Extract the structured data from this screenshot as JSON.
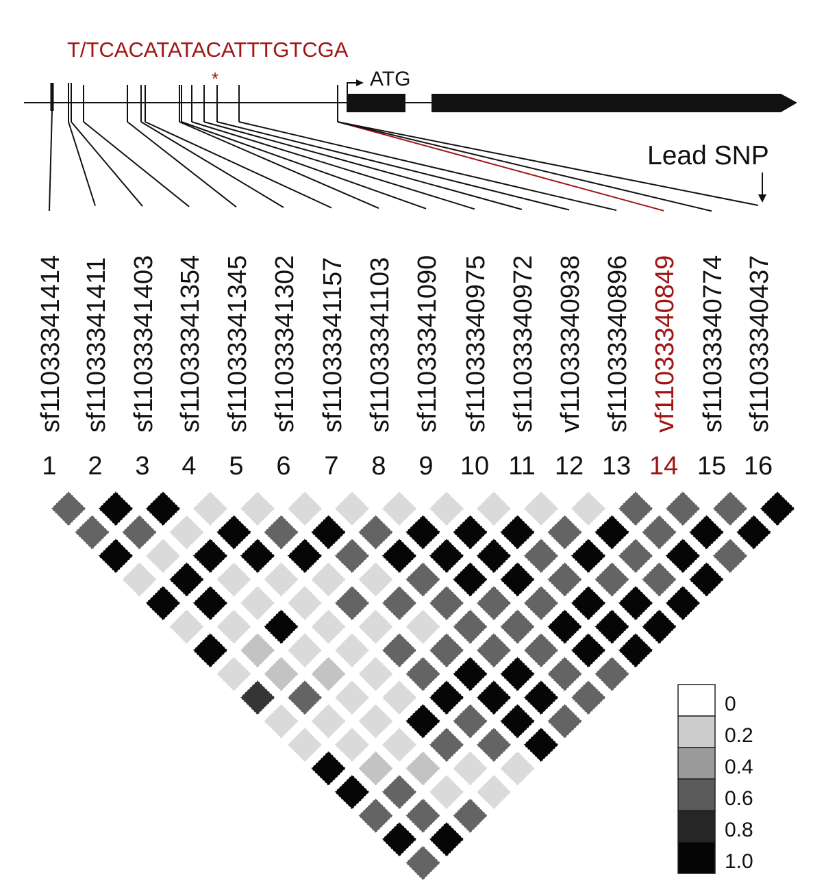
{
  "sequence_label": "T/TCACATATACATTTGTCGA",
  "asterisk": "*",
  "atg_label": "ATG",
  "lead_snp_label": "Lead SNP",
  "colors": {
    "black": "#111111",
    "red": "#a01414"
  },
  "highlight_index": 14,
  "snps": [
    {
      "index": "1",
      "id": "sf11033341414"
    },
    {
      "index": "2",
      "id": "sf11033341411"
    },
    {
      "index": "3",
      "id": "sf11033341403"
    },
    {
      "index": "4",
      "id": "sf11033341354"
    },
    {
      "index": "5",
      "id": "sf11033341345"
    },
    {
      "index": "6",
      "id": "sf11033341302"
    },
    {
      "index": "7",
      "id": "sf11033341157"
    },
    {
      "index": "8",
      "id": "sf11033341103"
    },
    {
      "index": "9",
      "id": "sf11033341090"
    },
    {
      "index": "10",
      "id": "sf11033340975"
    },
    {
      "index": "11",
      "id": "sf11033340972"
    },
    {
      "index": "12",
      "id": "vf11033340938"
    },
    {
      "index": "13",
      "id": "sf11033340896"
    },
    {
      "index": "14",
      "id": "vf11033340849"
    },
    {
      "index": "15",
      "id": "sf11033340774"
    },
    {
      "index": "16",
      "id": "sf11033340437"
    }
  ],
  "legend": {
    "labels": [
      "0",
      "0.2",
      "0.4",
      "0.6",
      "0.8",
      "1.0"
    ],
    "colors": [
      "#ffffff",
      "#cdcdcd",
      "#9a9a9a",
      "#5a5a5a",
      "#262626",
      "#050505"
    ]
  },
  "ld_matrix": [
    [
      0.6,
      1.0,
      1.0,
      0.1,
      0.1,
      0.1,
      0.1,
      0.1,
      0.1,
      0.1,
      0.1,
      0.1,
      0.6,
      0.6,
      0.6,
      1.0
    ],
    [
      0.6,
      0.6,
      0.1,
      1.0,
      0.6,
      1.0,
      0.6,
      1.0,
      1.0,
      1.0,
      0.6,
      1.0,
      0.6,
      1.0,
      1.0
    ],
    [
      1.0,
      0.1,
      1.0,
      1.0,
      1.0,
      0.6,
      1.0,
      1.0,
      1.0,
      0.6,
      1.0,
      0.6,
      1.0,
      0.6
    ],
    [
      0.1,
      1.0,
      0.1,
      0.1,
      0.1,
      0.1,
      0.6,
      1.0,
      1.0,
      0.6,
      0.6,
      0.6,
      1.0
    ],
    [
      1.0,
      1.0,
      0.1,
      0.1,
      0.6,
      0.6,
      0.6,
      0.6,
      0.6,
      1.0,
      1.0,
      1.0
    ],
    [
      0.1,
      0.1,
      1.0,
      0.1,
      0.1,
      0.1,
      0.6,
      0.6,
      1.0,
      1.0,
      1.0
    ],
    [
      1.0,
      0.2,
      0.1,
      0.1,
      0.6,
      0.6,
      0.6,
      0.6,
      1.0,
      1.0
    ],
    [
      0.1,
      0.2,
      0.2,
      0.1,
      0.6,
      1.0,
      1.0,
      0.6,
      0.6
    ],
    [
      0.8,
      0.6,
      0.1,
      0.1,
      1.0,
      1.0,
      1.0,
      0.6
    ],
    [
      0.1,
      0.1,
      0.1,
      1.0,
      0.6,
      1.0,
      0.6
    ],
    [
      0.1,
      0.1,
      0.1,
      0.6,
      0.6,
      1.0
    ],
    [
      1.0,
      0.2,
      0.2,
      0.1,
      0.1
    ],
    [
      1.0,
      0.6,
      0.1,
      0.1
    ],
    [
      0.6,
      0.6,
      0.6
    ],
    [
      1.0,
      1.0
    ],
    [
      0.6
    ]
  ]
}
